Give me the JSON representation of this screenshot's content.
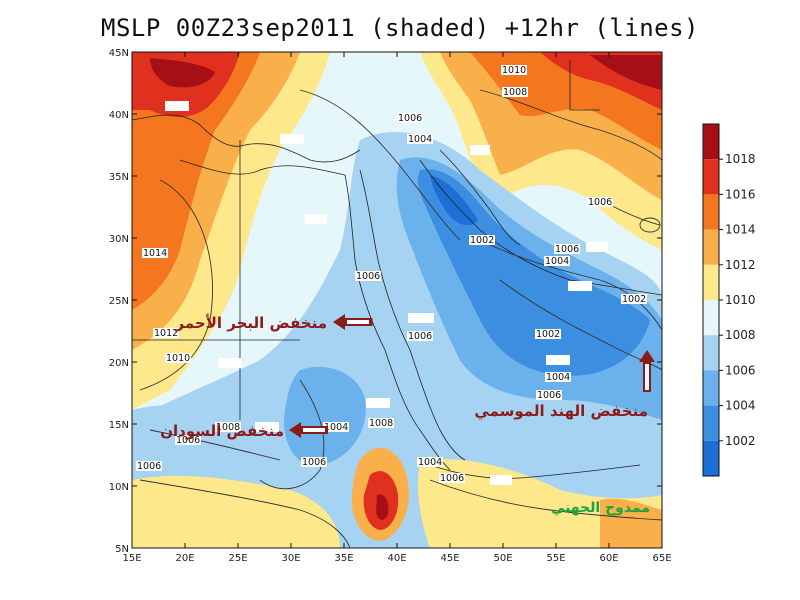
{
  "title": "MSLP 00Z23sep2011 (shaded) +12hr (lines)",
  "axes": {
    "lon_ticks": [
      "15E",
      "20E",
      "25E",
      "30E",
      "35E",
      "40E",
      "45E",
      "50E",
      "55E",
      "60E",
      "65E"
    ],
    "lat_ticks": [
      "45N",
      "40N",
      "35N",
      "30N",
      "25N",
      "20N",
      "15N",
      "10N",
      "5N"
    ]
  },
  "colorbar": {
    "labels": [
      "1018",
      "1016",
      "1014",
      "1012",
      "1010",
      "1008",
      "1006",
      "1004",
      "1002"
    ],
    "colors": [
      "#a50f15",
      "#e0301e",
      "#f4761e",
      "#f9b04a",
      "#fde98b",
      "#e6f7fc",
      "#a7d3f2",
      "#6bb1ec",
      "#3b8ee0",
      "#1d6fd6"
    ]
  },
  "contour_labels": [
    {
      "text": "1010"
    },
    {
      "text": "1008"
    },
    {
      "text": "1006"
    },
    {
      "text": "1004"
    },
    {
      "text": "1002"
    },
    {
      "text": "1006"
    },
    {
      "text": "1004"
    },
    {
      "text": "1006"
    },
    {
      "text": "1002"
    },
    {
      "text": "1014"
    },
    {
      "text": "1006"
    },
    {
      "text": "1006"
    },
    {
      "text": "1002"
    },
    {
      "text": "1004"
    },
    {
      "text": "1006"
    },
    {
      "text": "1012"
    },
    {
      "text": "1010"
    },
    {
      "text": "1008"
    },
    {
      "text": "1006"
    },
    {
      "text": "1004"
    },
    {
      "text": "1008"
    },
    {
      "text": "1006"
    },
    {
      "text": "1004"
    },
    {
      "text": "1006"
    },
    {
      "text": "1006"
    }
  ],
  "annotations": {
    "red_sea_low": "منخفض البحر الأحمر",
    "sudan_low": "منخفض السودان",
    "monsoon_low": "منخفض الهند الموسمي",
    "jet": "ممدوح الجهني"
  },
  "colors": {
    "annotation_text": "#8b1a1a",
    "arrow": "#8b1a1a",
    "signature": "#1fa33a"
  }
}
